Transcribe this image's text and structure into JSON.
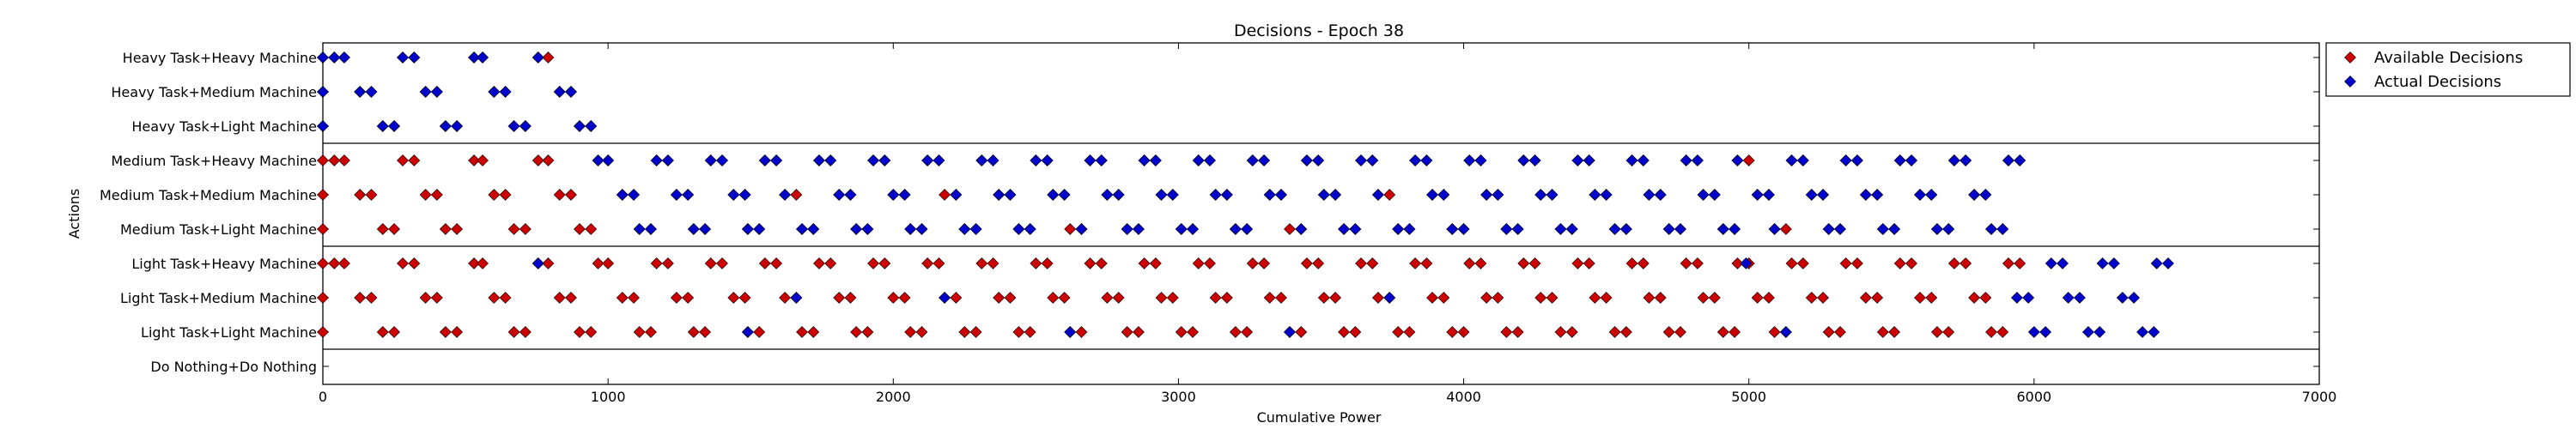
{
  "chart_data": {
    "type": "scatter",
    "title": "Decisions - Epoch 38",
    "xlabel": "Cumulative Power",
    "ylabel": "Actions",
    "xlim": [
      0,
      7000
    ],
    "x_ticks": [
      0,
      1000,
      2000,
      3000,
      4000,
      5000,
      6000,
      7000
    ],
    "categories": [
      "Heavy Task+Heavy Machine",
      "Heavy Task+Medium Machine",
      "Heavy Task+Light Machine",
      "Medium Task+Heavy Machine",
      "Medium Task+Medium Machine",
      "Medium Task+Light Machine",
      "Light Task+Heavy Machine",
      "Light Task+Medium Machine",
      "Light Task+Light Machine",
      "Do Nothing+Do Nothing"
    ],
    "group_separators_after": [
      2,
      5,
      8
    ],
    "marker": "diamond",
    "legend_position": "outside-right-top",
    "series": [
      {
        "name": "Available Decisions",
        "color": "#cc0000",
        "points": [
          {
            "category": "Heavy Task+Heavy Machine",
            "x": [
              0,
              40,
              75,
              280,
              320,
              530,
              560,
              755,
              790
            ]
          },
          {
            "category": "Heavy Task+Medium Machine",
            "x": [
              0,
              130,
              170,
              360,
              400,
              600,
              640,
              830,
              870
            ]
          },
          {
            "category": "Heavy Task+Light Machine",
            "x": [
              0,
              210,
              250,
              430,
              470,
              670,
              710,
              900,
              940
            ]
          },
          {
            "category": "Medium Task+Heavy Machine",
            "x": [
              0,
              40,
              75,
              280,
              320,
              530,
              560,
              755,
              790,
              965,
              1000,
              1170,
              1210,
              1360,
              1400,
              1550,
              1590,
              1740,
              1780,
              1930,
              1970,
              2120,
              2160,
              2310,
              2350,
              2500,
              2540,
              2690,
              2730,
              2880,
              2920,
              3070,
              3110,
              3260,
              3300,
              3450,
              3490,
              3640,
              3680,
              3830,
              3870,
              4020,
              4060,
              4210,
              4250,
              4400,
              4440,
              4590,
              4630,
              4780,
              4820,
              4960,
              5000,
              5150,
              5190,
              5340,
              5380,
              5530,
              5570,
              5720,
              5760,
              5910,
              5950
            ]
          },
          {
            "category": "Medium Task+Medium Machine",
            "x": [
              0,
              130,
              170,
              360,
              400,
              600,
              640,
              830,
              870,
              1050,
              1090,
              1240,
              1280,
              1440,
              1480,
              1620,
              1660,
              1810,
              1850,
              2000,
              2040,
              2180,
              2220,
              2370,
              2410,
              2560,
              2600,
              2750,
              2790,
              2940,
              2980,
              3130,
              3170,
              3320,
              3360,
              3510,
              3550,
              3700,
              3740,
              3890,
              3930,
              4080,
              4120,
              4270,
              4310,
              4460,
              4500,
              4650,
              4690,
              4840,
              4880,
              5030,
              5070,
              5220,
              5260,
              5410,
              5450,
              5600,
              5640,
              5790,
              5830
            ]
          },
          {
            "category": "Medium Task+Light Machine",
            "x": [
              0,
              210,
              250,
              430,
              470,
              670,
              710,
              900,
              940,
              1110,
              1150,
              1300,
              1340,
              1490,
              1530,
              1680,
              1720,
              1870,
              1910,
              2060,
              2100,
              2250,
              2290,
              2440,
              2480,
              2620,
              2660,
              2820,
              2860,
              3010,
              3050,
              3200,
              3240,
              3390,
              3430,
              3580,
              3620,
              3770,
              3810,
              3960,
              4000,
              4150,
              4190,
              4340,
              4380,
              4530,
              4570,
              4720,
              4760,
              4910,
              4950,
              5090,
              5130,
              5280,
              5320,
              5470,
              5510,
              5660,
              5700,
              5850,
              5890
            ]
          },
          {
            "category": "Light Task+Heavy Machine",
            "x": [
              0,
              40,
              75,
              280,
              320,
              530,
              560,
              755,
              790,
              965,
              1000,
              1170,
              1210,
              1360,
              1400,
              1550,
              1590,
              1740,
              1780,
              1930,
              1970,
              2120,
              2160,
              2310,
              2350,
              2500,
              2540,
              2690,
              2730,
              2880,
              2920,
              3070,
              3110,
              3260,
              3300,
              3450,
              3490,
              3640,
              3680,
              3830,
              3870,
              4020,
              4060,
              4210,
              4250,
              4400,
              4440,
              4590,
              4630,
              4780,
              4820,
              4960,
              5000,
              5150,
              5190,
              5340,
              5380,
              5530,
              5570,
              5720,
              5760,
              5910,
              5950
            ]
          },
          {
            "category": "Light Task+Medium Machine",
            "x": [
              0,
              130,
              170,
              360,
              400,
              600,
              640,
              830,
              870,
              1050,
              1090,
              1240,
              1280,
              1440,
              1480,
              1620,
              1660,
              1810,
              1850,
              2000,
              2040,
              2180,
              2220,
              2370,
              2410,
              2560,
              2600,
              2750,
              2790,
              2940,
              2980,
              3130,
              3170,
              3320,
              3360,
              3510,
              3550,
              3700,
              3740,
              3890,
              3930,
              4080,
              4120,
              4270,
              4310,
              4460,
              4500,
              4650,
              4690,
              4840,
              4880,
              5030,
              5070,
              5220,
              5260,
              5410,
              5450,
              5600,
              5640,
              5790,
              5830
            ]
          },
          {
            "category": "Light Task+Light Machine",
            "x": [
              0,
              210,
              250,
              430,
              470,
              670,
              710,
              900,
              940,
              1110,
              1150,
              1300,
              1340,
              1490,
              1530,
              1680,
              1720,
              1870,
              1910,
              2060,
              2100,
              2250,
              2290,
              2440,
              2480,
              2620,
              2660,
              2820,
              2860,
              3010,
              3050,
              3200,
              3240,
              3390,
              3430,
              3580,
              3620,
              3770,
              3810,
              3960,
              4000,
              4150,
              4190,
              4340,
              4380,
              4530,
              4570,
              4720,
              4760,
              4910,
              4950,
              5090,
              5130,
              5280,
              5320,
              5470,
              5510,
              5660,
              5700,
              5850,
              5890
            ]
          }
        ]
      },
      {
        "name": "Actual Decisions",
        "color": "#0000cc",
        "points": [
          {
            "category": "Heavy Task+Heavy Machine",
            "x": [
              0,
              40,
              75,
              280,
              320,
              530,
              560,
              755
            ]
          },
          {
            "category": "Heavy Task+Medium Machine",
            "x": [
              0,
              130,
              170,
              360,
              400,
              600,
              640,
              830,
              870
            ]
          },
          {
            "category": "Heavy Task+Light Machine",
            "x": [
              0,
              210,
              250,
              430,
              470,
              670,
              710,
              900,
              940
            ]
          },
          {
            "category": "Medium Task+Heavy Machine",
            "x": [
              965,
              1000,
              1170,
              1210,
              1360,
              1400,
              1550,
              1590,
              1740,
              1780,
              1930,
              1970,
              2120,
              2160,
              2310,
              2350,
              2500,
              2540,
              2690,
              2730,
              2880,
              2920,
              3070,
              3110,
              3260,
              3300,
              3450,
              3490,
              3640,
              3680,
              3830,
              3870,
              4020,
              4060,
              4210,
              4250,
              4400,
              4440,
              4590,
              4630,
              4780,
              4820,
              4960,
              5150,
              5190,
              5340,
              5380,
              5530,
              5570,
              5720,
              5760,
              5910,
              5950
            ]
          },
          {
            "category": "Medium Task+Medium Machine",
            "x": [
              1050,
              1090,
              1240,
              1280,
              1440,
              1480,
              1620,
              1810,
              1850,
              2000,
              2040,
              2220,
              2370,
              2410,
              2560,
              2600,
              2750,
              2790,
              2940,
              2980,
              3130,
              3170,
              3320,
              3360,
              3510,
              3550,
              3700,
              3890,
              3930,
              4080,
              4120,
              4270,
              4310,
              4460,
              4500,
              4650,
              4690,
              4840,
              4880,
              5030,
              5070,
              5220,
              5260,
              5410,
              5450,
              5600,
              5640,
              5790,
              5830
            ]
          },
          {
            "category": "Medium Task+Light Machine",
            "x": [
              1110,
              1150,
              1300,
              1340,
              1490,
              1530,
              1680,
              1720,
              1870,
              1910,
              2060,
              2100,
              2250,
              2290,
              2440,
              2480,
              2660,
              2820,
              2860,
              3010,
              3050,
              3200,
              3240,
              3430,
              3580,
              3620,
              3770,
              3810,
              3960,
              4000,
              4150,
              4190,
              4340,
              4380,
              4530,
              4570,
              4720,
              4760,
              4910,
              4950,
              5090,
              5280,
              5320,
              5470,
              5510,
              5660,
              5700,
              5850,
              5890
            ]
          },
          {
            "category": "Light Task+Heavy Machine",
            "x": [
              755,
              4990,
              6060,
              6100,
              6240,
              6280,
              6430,
              6470
            ]
          },
          {
            "category": "Light Task+Medium Machine",
            "x": [
              1660,
              2180,
              3740,
              5940,
              5980,
              6120,
              6160,
              6310,
              6350
            ]
          },
          {
            "category": "Light Task+Light Machine",
            "x": [
              1490,
              2620,
              3390,
              5130,
              6000,
              6040,
              6190,
              6230,
              6380,
              6420
            ]
          }
        ]
      }
    ]
  }
}
